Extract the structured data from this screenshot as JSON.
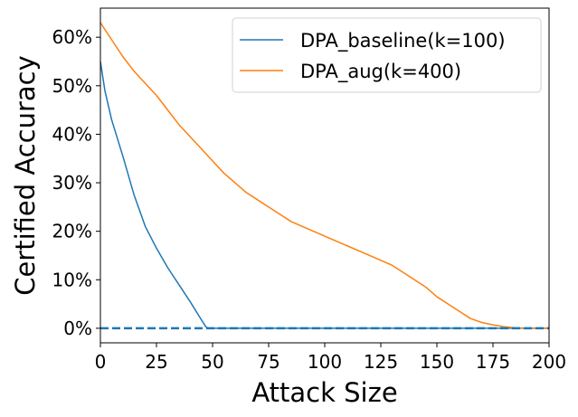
{
  "chart_data": {
    "type": "line",
    "xlabel": "Attack Size",
    "ylabel": "Certified Accuracy",
    "xlim": [
      0,
      200
    ],
    "ylim": [
      -3,
      66
    ],
    "x_ticks": [
      0,
      25,
      50,
      75,
      100,
      125,
      150,
      175,
      200
    ],
    "x_tick_labels": [
      "0",
      "25",
      "50",
      "75",
      "100",
      "125",
      "150",
      "175",
      "200"
    ],
    "y_ticks": [
      0,
      10,
      20,
      30,
      40,
      50,
      60
    ],
    "y_tick_labels": [
      "0%",
      "10%",
      "20%",
      "30%",
      "40%",
      "50%",
      "60%"
    ],
    "grid": false,
    "legend_position": "top-right",
    "baseline_y": 0,
    "series": [
      {
        "name": "DPA_baseline(k=100)",
        "color": "#1f77b4",
        "x": [
          0,
          2,
          5,
          10,
          15,
          20,
          25,
          30,
          35,
          40,
          44,
          47,
          48,
          50,
          100,
          150,
          200
        ],
        "y": [
          55,
          49,
          43,
          35.5,
          27.5,
          21,
          16.5,
          12.5,
          9,
          5.5,
          2.5,
          0.3,
          0,
          0,
          0,
          0,
          0
        ]
      },
      {
        "name": "DPA_aug(k=400)",
        "color": "#ff7f0e",
        "x": [
          0,
          5,
          10,
          15,
          20,
          25,
          30,
          35,
          40,
          45,
          50,
          55,
          60,
          65,
          70,
          75,
          80,
          85,
          90,
          95,
          100,
          105,
          110,
          115,
          120,
          125,
          130,
          135,
          140,
          145,
          150,
          155,
          160,
          165,
          170,
          175,
          180,
          185,
          190,
          195,
          200
        ],
        "y": [
          63,
          59.5,
          56,
          53,
          50.5,
          48,
          45,
          42,
          39.5,
          37,
          34.5,
          32,
          30,
          28,
          26.5,
          25,
          23.5,
          22,
          21,
          20,
          19,
          18,
          17,
          16,
          15,
          14,
          13,
          11.5,
          10,
          8.5,
          6.5,
          5,
          3.5,
          2,
          1.2,
          0.7,
          0.3,
          0.1,
          0,
          0,
          0
        ]
      }
    ]
  }
}
